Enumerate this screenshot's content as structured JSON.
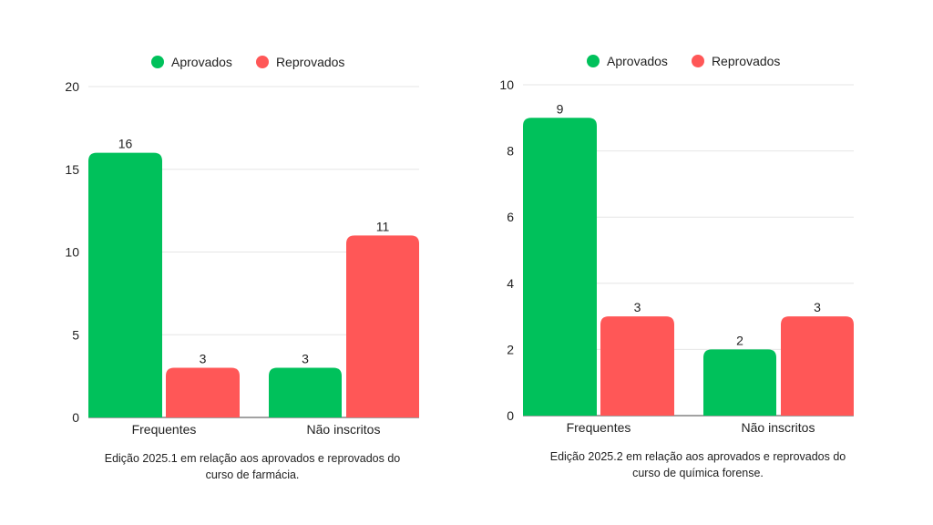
{
  "chart_data": [
    {
      "type": "bar",
      "categories": [
        "Frequentes",
        "Não inscritos"
      ],
      "series": [
        {
          "name": "Aprovados",
          "color": "#00c15b",
          "values": [
            16,
            3
          ]
        },
        {
          "name": "Reprovados",
          "color": "#ff5757",
          "values": [
            3,
            11
          ]
        }
      ],
      "ylim": [
        0,
        20
      ],
      "yticks": [
        0,
        5,
        10,
        15,
        20
      ],
      "caption_lines": [
        "Edição 2025.1 em relação aos aprovados e reprovados do",
        "curso de farmácia."
      ],
      "legend_position": "top-center",
      "grid": true
    },
    {
      "type": "bar",
      "categories": [
        "Frequentes",
        "Não inscritos"
      ],
      "series": [
        {
          "name": "Aprovados",
          "color": "#00c15b",
          "values": [
            9,
            2
          ]
        },
        {
          "name": "Reprovados",
          "color": "#ff5757",
          "values": [
            3,
            3
          ]
        }
      ],
      "ylim": [
        0,
        10
      ],
      "yticks": [
        0,
        2,
        4,
        6,
        8,
        10
      ],
      "caption_lines": [
        "Edição 2025.2 em relação aos aprovados e reprovados do",
        "curso de química forense."
      ],
      "legend_position": "top-center",
      "grid": true
    }
  ]
}
